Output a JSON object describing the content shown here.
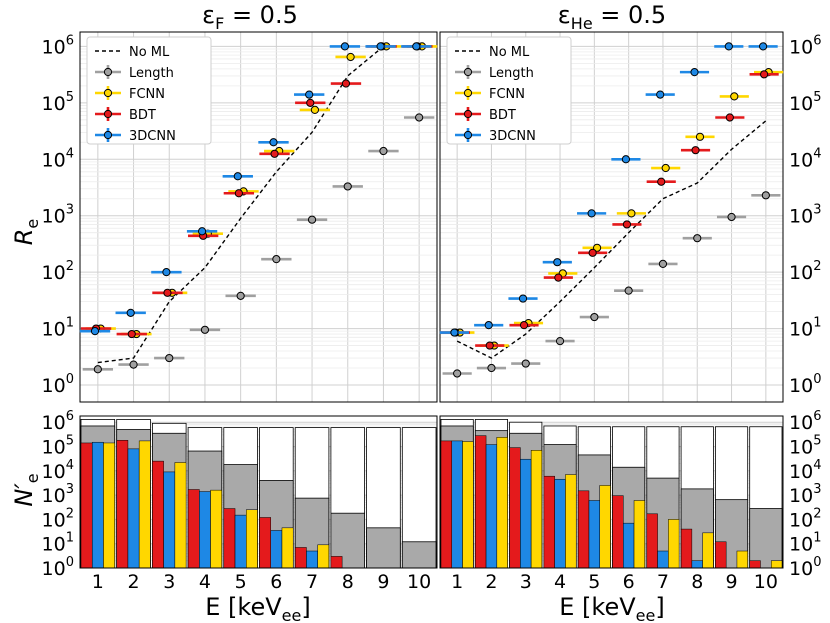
{
  "colors": {
    "no_ml": "#000000",
    "length": "#a0a0a0",
    "fcnn": "#ffd700",
    "bdt": "#e41a1c",
    "cnn3d": "#1e88e5",
    "total_bar": "#ffffff",
    "length_bar": "#a9a9a9",
    "grid": "#d0d0d0"
  },
  "legend": [
    "No ML",
    "Length",
    "FCNN",
    "BDT",
    "3DCNN"
  ],
  "titles": {
    "left_prefix": "ε",
    "left_sub": "F",
    "left_suffix": " = 0.5",
    "right_prefix": "ε",
    "right_sub": "He",
    "right_suffix": " = 0.5"
  },
  "axis_labels": {
    "top_y_main": "R",
    "top_y_sub": "e",
    "bottom_y_main": "N′",
    "bottom_y_sub": "e",
    "x_main": "E [keV",
    "x_sub": "ee",
    "x_close": "]"
  },
  "x_ticks": [
    "1",
    "2",
    "3",
    "4",
    "5",
    "6",
    "7",
    "8",
    "9",
    "10"
  ],
  "top_y_ticks": [
    {
      "base": "10",
      "exp": "0"
    },
    {
      "base": "10",
      "exp": "1"
    },
    {
      "base": "10",
      "exp": "2"
    },
    {
      "base": "10",
      "exp": "3"
    },
    {
      "base": "10",
      "exp": "4"
    },
    {
      "base": "10",
      "exp": "5"
    },
    {
      "base": "10",
      "exp": "6"
    }
  ],
  "bottom_y_ticks": [
    {
      "base": "10",
      "exp": "0"
    },
    {
      "base": "10",
      "exp": "1"
    },
    {
      "base": "10",
      "exp": "2"
    },
    {
      "base": "10",
      "exp": "3"
    },
    {
      "base": "10",
      "exp": "4"
    },
    {
      "base": "10",
      "exp": "5"
    },
    {
      "base": "10",
      "exp": "6"
    }
  ],
  "chart_data": [
    {
      "type": "scatter",
      "panel": "top-left",
      "x": [
        1,
        2,
        3,
        4,
        5,
        6,
        7,
        8,
        9,
        10
      ],
      "yscale": "log",
      "ylim": [
        0.5,
        1800000
      ],
      "xlim": [
        0.5,
        10.5
      ],
      "legend_position": "upper-left",
      "grid": true,
      "series": [
        {
          "name": "No ML",
          "style": "dashed-line",
          "values": [
            2.5,
            3,
            30,
            120,
            900,
            6000,
            30000,
            300000,
            1000000,
            1000000
          ]
        },
        {
          "name": "Length",
          "style": "errorbar",
          "values": [
            1.9,
            2.3,
            3,
            9.5,
            38,
            170,
            850,
            3300,
            14000,
            55000
          ]
        },
        {
          "name": "FCNN",
          "style": "errorbar",
          "values": [
            10,
            8,
            43,
            480,
            2700,
            14000,
            75000,
            650000,
            1000000,
            1000000
          ]
        },
        {
          "name": "BDT",
          "style": "errorbar",
          "values": [
            10,
            8,
            43,
            440,
            2500,
            12500,
            100000,
            220000,
            1000000,
            1000000
          ]
        },
        {
          "name": "3DCNN",
          "style": "errorbar",
          "values": [
            9,
            19,
            100,
            530,
            5000,
            20000,
            140000,
            1000000,
            1000000,
            1000000
          ]
        }
      ]
    },
    {
      "type": "scatter",
      "panel": "top-right",
      "x": [
        1,
        2,
        3,
        4,
        5,
        6,
        7,
        8,
        9,
        10
      ],
      "yscale": "log",
      "ylim": [
        0.5,
        1800000
      ],
      "xlim": [
        0.5,
        10.5
      ],
      "legend_position": "upper-left",
      "grid": true,
      "series": [
        {
          "name": "No ML",
          "style": "dashed-line",
          "values": [
            6,
            3,
            8,
            30,
            120,
            500,
            2000,
            3800,
            15000,
            48000
          ]
        },
        {
          "name": "Length",
          "style": "errorbar",
          "values": [
            1.6,
            2,
            2.4,
            6,
            16,
            47,
            140,
            400,
            950,
            2300
          ]
        },
        {
          "name": "FCNN",
          "style": "errorbar",
          "values": [
            8.5,
            5,
            12.5,
            95,
            270,
            1100,
            7000,
            25000,
            130000,
            350000
          ]
        },
        {
          "name": "BDT",
          "style": "errorbar",
          "values": [
            8.5,
            5,
            11.5,
            80,
            220,
            700,
            4000,
            14500,
            55000,
            320000
          ]
        },
        {
          "name": "3DCNN",
          "style": "errorbar",
          "values": [
            8.5,
            11.5,
            34,
            150,
            1100,
            10000,
            140000,
            350000,
            1000000,
            1000000
          ]
        }
      ]
    },
    {
      "type": "bar",
      "panel": "bottom-left",
      "categories": [
        "1",
        "2",
        "3",
        "4",
        "5",
        "6",
        "7",
        "8",
        "9",
        "10"
      ],
      "yscale": "log",
      "ylim": [
        1,
        1800000
      ],
      "series": [
        {
          "name": "Total",
          "values": [
            1300000,
            1300000,
            900000,
            600000,
            600000,
            600000,
            600000,
            600000,
            600000,
            600000
          ]
        },
        {
          "name": "Length",
          "values": [
            700000,
            500000,
            350000,
            65000,
            18000,
            4000,
            750,
            180,
            45,
            12
          ]
        },
        {
          "name": "BDT",
          "values": [
            140000,
            180000,
            25000,
            1700,
            280,
            120,
            7,
            3,
            0,
            0
          ]
        },
        {
          "name": "3DCNN",
          "values": [
            150000,
            80000,
            9000,
            1400,
            150,
            35,
            5,
            0,
            0,
            0
          ]
        },
        {
          "name": "FCNN",
          "values": [
            140000,
            170000,
            22000,
            1600,
            250,
            45,
            9,
            1,
            0,
            0
          ]
        }
      ]
    },
    {
      "type": "bar",
      "panel": "bottom-right",
      "categories": [
        "1",
        "2",
        "3",
        "4",
        "5",
        "6",
        "7",
        "8",
        "9",
        "10"
      ],
      "yscale": "log",
      "ylim": [
        1,
        1800000
      ],
      "series": [
        {
          "name": "Total",
          "values": [
            1300000,
            1300000,
            1000000,
            700000,
            650000,
            650000,
            650000,
            650000,
            650000,
            650000
          ]
        },
        {
          "name": "Length",
          "values": [
            700000,
            450000,
            350000,
            120000,
            45000,
            14000,
            5000,
            1800,
            650,
            280
          ]
        },
        {
          "name": "BDT",
          "values": [
            170000,
            280000,
            90000,
            6000,
            1500,
            950,
            170,
            40,
            12,
            2
          ]
        },
        {
          "name": "3DCNN",
          "values": [
            170000,
            120000,
            30000,
            4500,
            600,
            70,
            5,
            2,
            0,
            0
          ]
        },
        {
          "name": "FCNN",
          "values": [
            160000,
            240000,
            70000,
            7000,
            2500,
            600,
            100,
            28,
            5,
            2
          ]
        }
      ]
    }
  ]
}
